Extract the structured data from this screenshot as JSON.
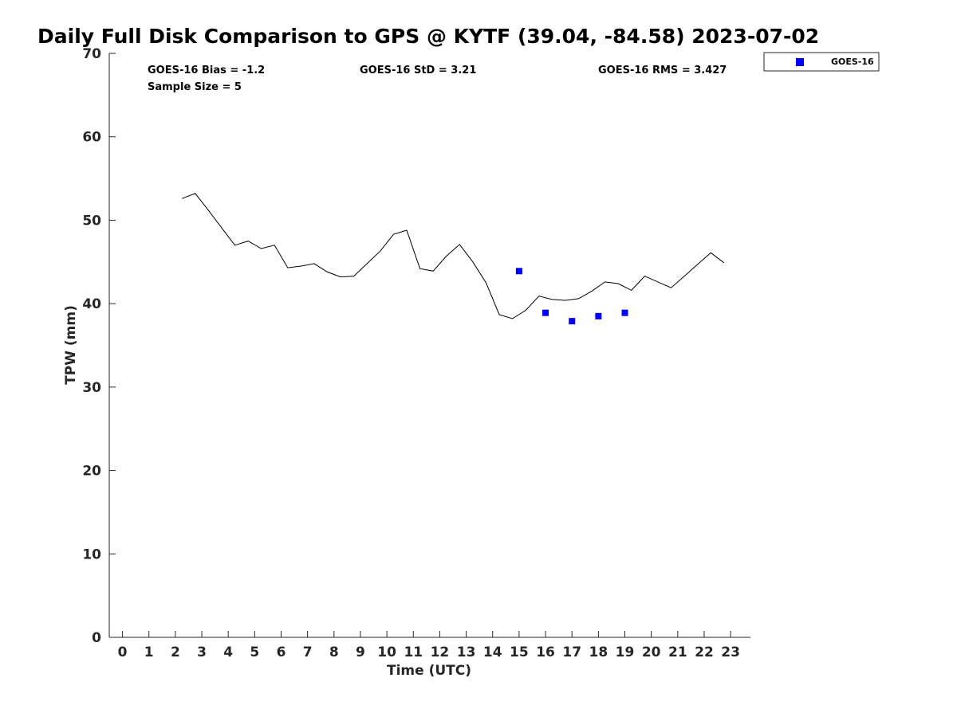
{
  "title": "Daily Full Disk Comparison to GPS @ KYTF (39.04, -84.58) 2023-07-02",
  "stats": {
    "bias": "GOES-16 Bias = -1.2",
    "std": "GOES-16 StD = 3.21",
    "rms": "GOES-16 RMS = 3.427",
    "sample": "Sample Size = 5"
  },
  "legend": {
    "label": "GOES-16"
  },
  "colors": {
    "goes": "#0000ff",
    "gps_line": "#000000",
    "axis": "#262626"
  },
  "chart_data": {
    "type": "line",
    "title": "Daily Full Disk Comparison to GPS @ KYTF (39.04, -84.58) 2023-07-02",
    "xlabel": "Time (UTC)",
    "ylabel": "TPW (mm)",
    "xlim": [
      -0.5,
      23.75
    ],
    "ylim": [
      0,
      70
    ],
    "xticks": [
      0,
      1,
      2,
      3,
      4,
      5,
      6,
      7,
      8,
      9,
      10,
      11,
      12,
      13,
      14,
      15,
      16,
      17,
      18,
      19,
      20,
      21,
      22,
      23
    ],
    "yticks": [
      0,
      10,
      20,
      30,
      40,
      50,
      60,
      70
    ],
    "grid": false,
    "legend_position": "top-right",
    "series": [
      {
        "name": "",
        "kind": "line",
        "x": [
          2.25,
          2.75,
          3.25,
          3.75,
          4.25,
          4.75,
          5.25,
          5.75,
          6.25,
          6.75,
          7.25,
          7.75,
          8.25,
          8.75,
          9.25,
          9.75,
          10.25,
          10.75,
          11.25,
          11.75,
          12.25,
          12.75,
          13.25,
          13.75,
          14.25,
          14.75,
          15.25,
          15.75,
          16.25,
          16.75,
          17.25,
          17.75,
          18.25,
          18.75,
          19.25,
          19.75,
          20.25,
          20.75,
          21.25,
          21.75,
          22.25,
          22.75
        ],
        "y": [
          52.6,
          53.2,
          51.2,
          49.1,
          47.0,
          47.5,
          46.6,
          47.0,
          44.3,
          44.5,
          44.8,
          43.8,
          43.2,
          43.3,
          44.8,
          46.3,
          48.3,
          48.8,
          44.2,
          43.9,
          45.7,
          47.1,
          45.0,
          42.5,
          38.7,
          38.2,
          39.2,
          40.9,
          40.5,
          40.4,
          40.6,
          41.5,
          42.6,
          42.4,
          41.6,
          43.3,
          42.6,
          41.9,
          43.3,
          44.7,
          46.1,
          44.9
        ]
      },
      {
        "name": "GOES-16",
        "kind": "scatter",
        "x": [
          15,
          16,
          17,
          18,
          19
        ],
        "y": [
          43.9,
          38.9,
          37.9,
          38.5,
          38.9
        ]
      }
    ]
  }
}
